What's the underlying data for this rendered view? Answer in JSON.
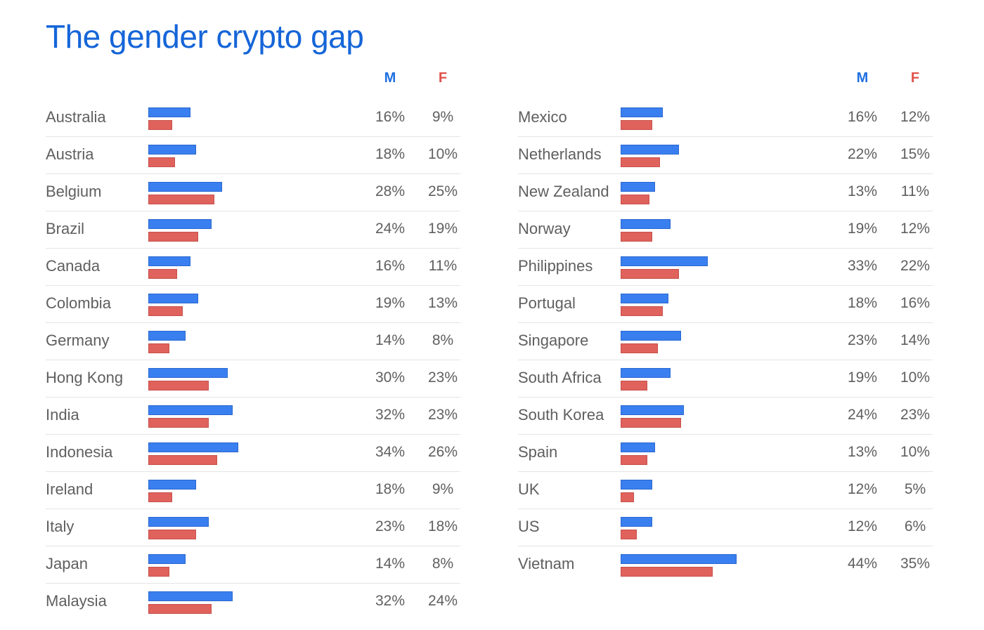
{
  "title": "The gender crypto gap",
  "headers": {
    "m": "M",
    "f": "F"
  },
  "colors": {
    "male": "#3a7ff0",
    "female": "#e0625c",
    "title": "#1565d8"
  },
  "chart_data": {
    "type": "bar",
    "title": "The gender crypto gap",
    "series_names": [
      "M",
      "F"
    ],
    "unit": "%",
    "xlim": [
      0,
      45
    ],
    "panels": [
      {
        "rows": [
          {
            "country": "Australia",
            "m": 16,
            "f": 9
          },
          {
            "country": "Austria",
            "m": 18,
            "f": 10
          },
          {
            "country": "Belgium",
            "m": 28,
            "f": 25
          },
          {
            "country": "Brazil",
            "m": 24,
            "f": 19
          },
          {
            "country": "Canada",
            "m": 16,
            "f": 11
          },
          {
            "country": "Colombia",
            "m": 19,
            "f": 13
          },
          {
            "country": "Germany",
            "m": 14,
            "f": 8
          },
          {
            "country": "Hong Kong",
            "m": 30,
            "f": 23
          },
          {
            "country": "India",
            "m": 32,
            "f": 23
          },
          {
            "country": "Indonesia",
            "m": 34,
            "f": 26
          },
          {
            "country": "Ireland",
            "m": 18,
            "f": 9
          },
          {
            "country": "Italy",
            "m": 23,
            "f": 18
          },
          {
            "country": "Japan",
            "m": 14,
            "f": 8
          },
          {
            "country": "Malaysia",
            "m": 32,
            "f": 24
          }
        ]
      },
      {
        "rows": [
          {
            "country": "Mexico",
            "m": 16,
            "f": 12
          },
          {
            "country": "Netherlands",
            "m": 22,
            "f": 15
          },
          {
            "country": "New Zealand",
            "m": 13,
            "f": 11
          },
          {
            "country": "Norway",
            "m": 19,
            "f": 12
          },
          {
            "country": "Philippines",
            "m": 33,
            "f": 22
          },
          {
            "country": "Portugal",
            "m": 18,
            "f": 16
          },
          {
            "country": "Singapore",
            "m": 23,
            "f": 14
          },
          {
            "country": "South Africa",
            "m": 19,
            "f": 10
          },
          {
            "country": "South Korea",
            "m": 24,
            "f": 23
          },
          {
            "country": "Spain",
            "m": 13,
            "f": 10
          },
          {
            "country": "UK",
            "m": 12,
            "f": 5
          },
          {
            "country": "US",
            "m": 12,
            "f": 6
          },
          {
            "country": "Vietnam",
            "m": 44,
            "f": 35
          }
        ]
      }
    ]
  }
}
